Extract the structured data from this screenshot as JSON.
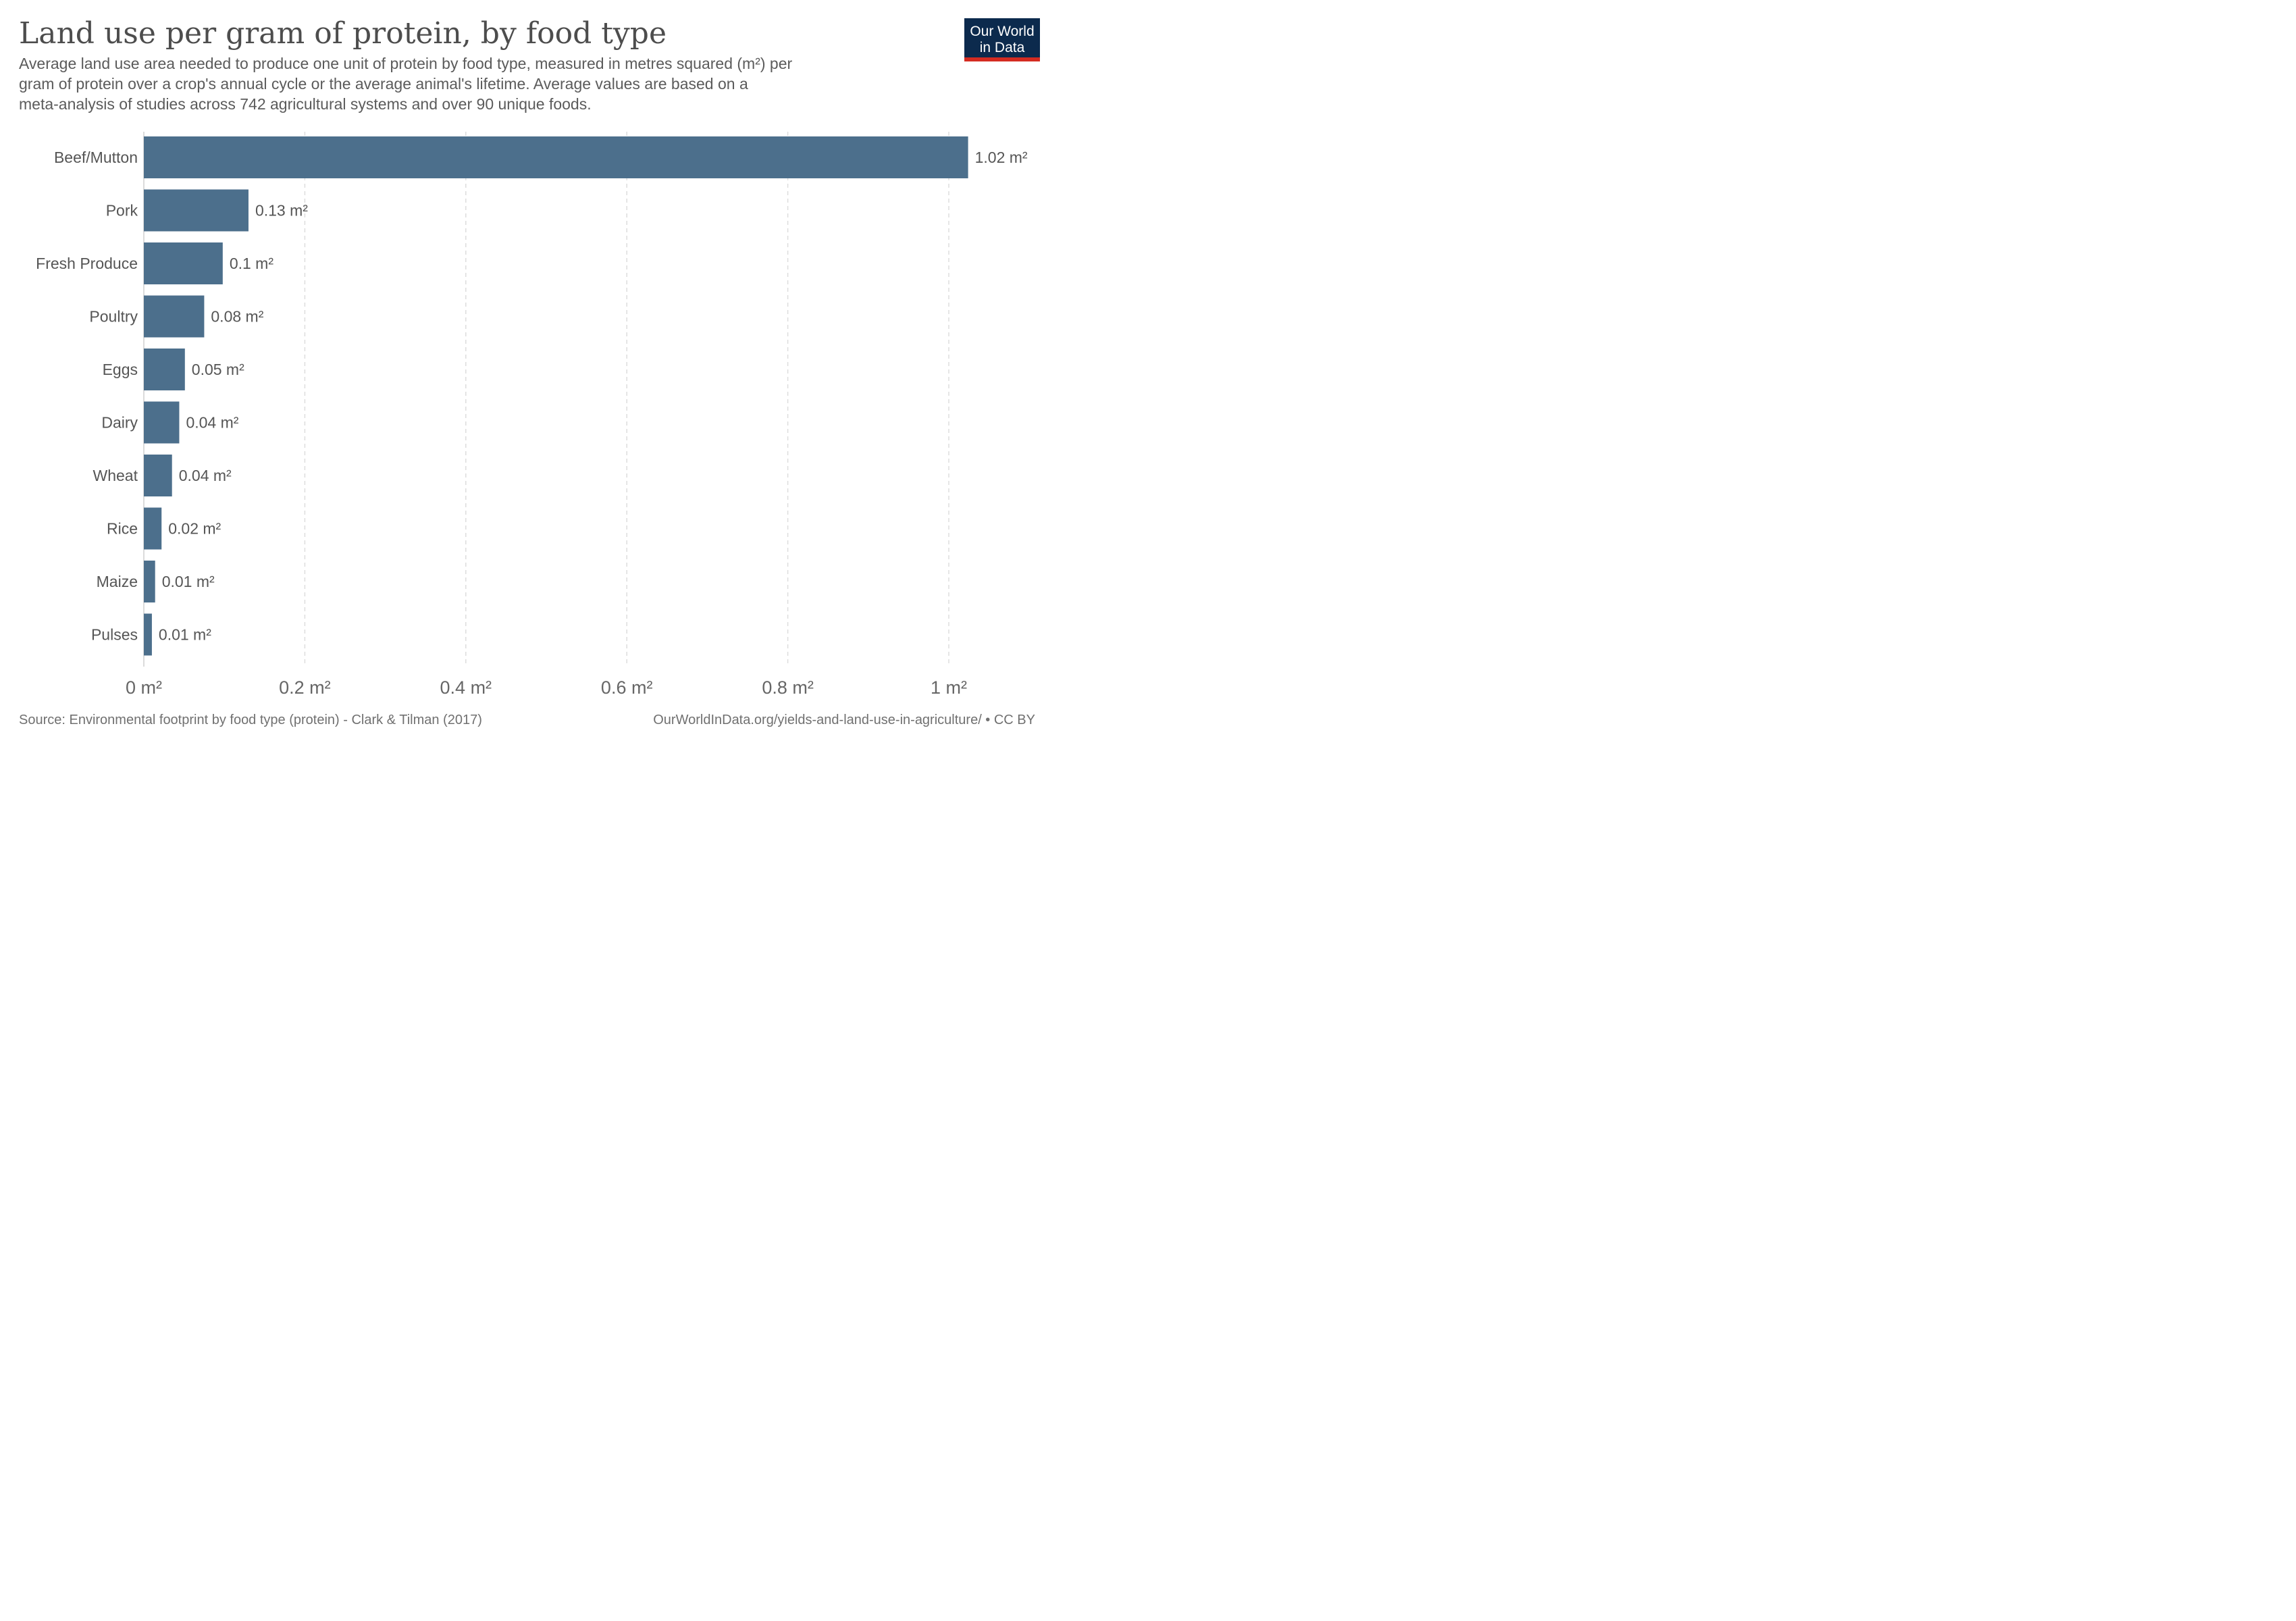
{
  "header": {
    "title": "Land use per gram of protein, by food type",
    "subtitle_lines": [
      "Average land use area needed to produce one unit of protein by food type, measured in metres squared (m²) per",
      "gram of protein over a crop's annual cycle or the average animal's lifetime. Average values are based on a",
      "meta-analysis of studies across 742 agricultural systems and over 90 unique foods."
    ]
  },
  "logo": {
    "line1": "Our World",
    "line2": "in Data",
    "bg_color": "#0c2a4d",
    "accent_color": "#d42b21"
  },
  "footer": {
    "source": "Source: Environmental footprint by food type (protein) - Clark & Tilman (2017)",
    "url": "OurWorldInData.org/yields-and-land-use-in-agriculture/ • CC BY"
  },
  "chart_data": {
    "type": "bar",
    "orientation": "horizontal",
    "bar_color": "#4c6f8c",
    "grid": true,
    "xlim": [
      0,
      1
    ],
    "categories": [
      "Beef/Mutton",
      "Pork",
      "Fresh Produce",
      "Poultry",
      "Eggs",
      "Dairy",
      "Wheat",
      "Rice",
      "Maize",
      "Pulses"
    ],
    "values": [
      1.024,
      0.13,
      0.098,
      0.075,
      0.051,
      0.044,
      0.035,
      0.022,
      0.014,
      0.01
    ],
    "value_labels": [
      "1.02 m²",
      "0.13 m²",
      "0.1 m²",
      "0.08 m²",
      "0.05 m²",
      "0.04 m²",
      "0.04 m²",
      "0.02 m²",
      "0.01 m²",
      "0.01 m²"
    ],
    "x_ticks": [
      0,
      0.2,
      0.4,
      0.6,
      0.8,
      1
    ],
    "x_tick_labels": [
      "0 m²",
      "0.2 m²",
      "0.4 m²",
      "0.6 m²",
      "0.8 m²",
      "1 m²"
    ]
  }
}
